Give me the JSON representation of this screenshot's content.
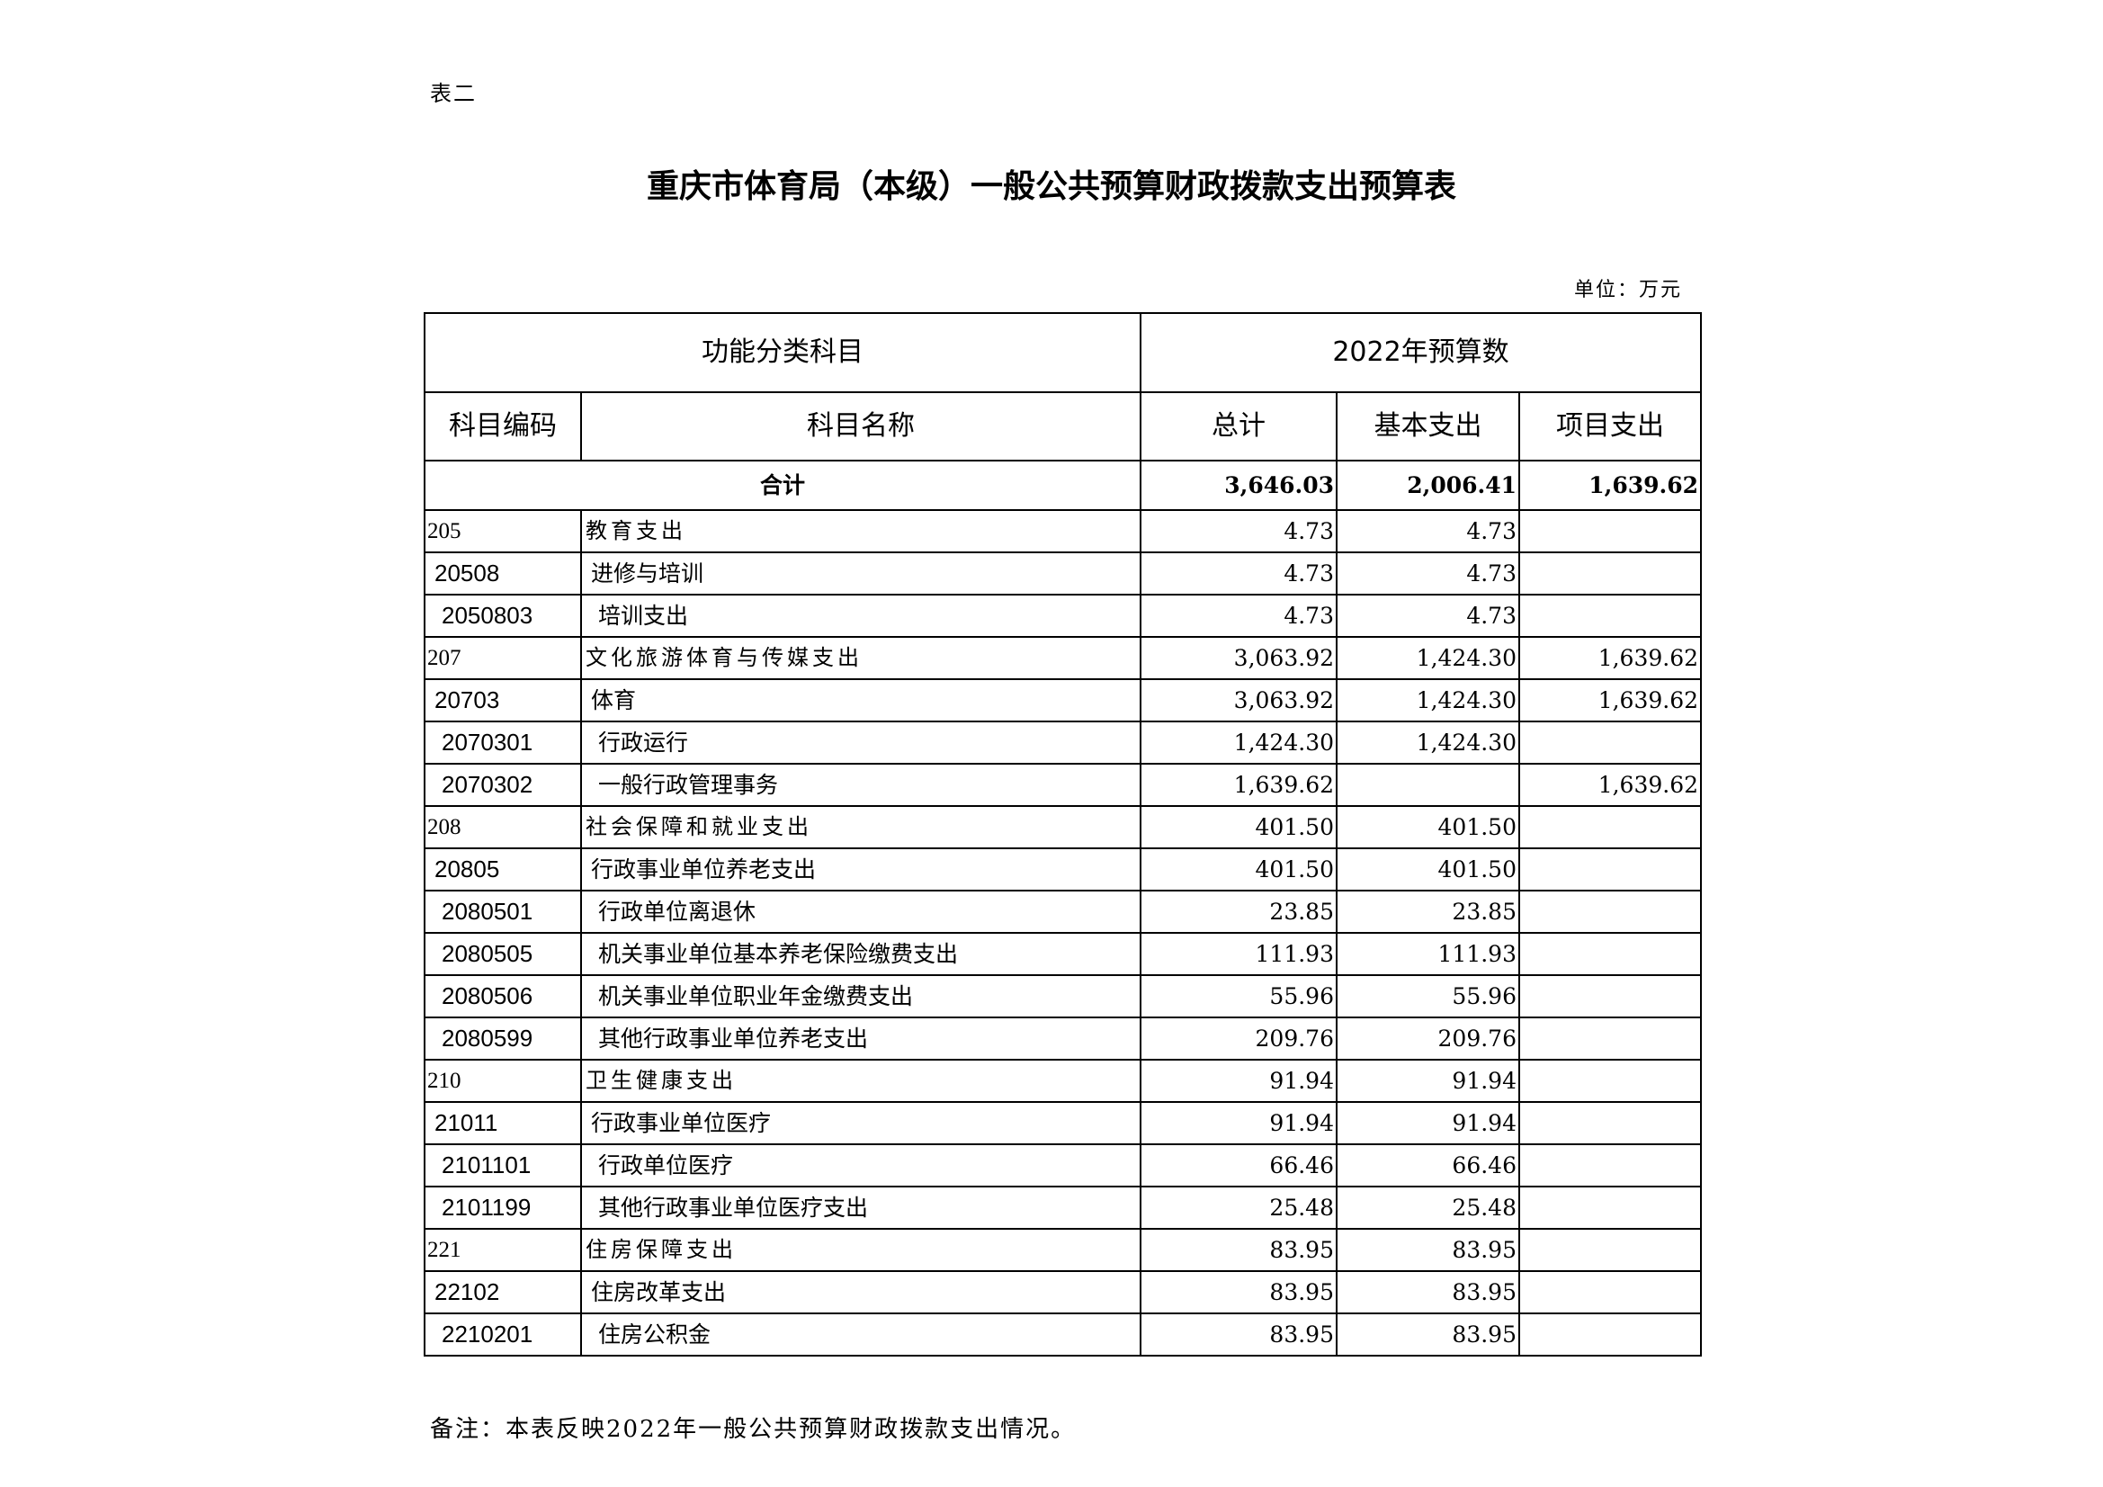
{
  "tag": "表二",
  "title": "重庆市体育局（本级）一般公共预算财政拨款支出预算表",
  "unit": "单位：万元",
  "header": {
    "group_left": "功能分类科目",
    "group_right": "2022年预算数",
    "code": "科目编码",
    "name": "科目名称",
    "total": "总计",
    "basic": "基本支出",
    "project": "项目支出"
  },
  "total_row": {
    "label": "合计",
    "total": "3,646.03",
    "basic": "2,006.41",
    "project": "1,639.62"
  },
  "rows": [
    {
      "level": 1,
      "code": "205",
      "name": "教育支出",
      "total": "4.73",
      "basic": "4.73",
      "project": ""
    },
    {
      "level": 2,
      "code": "20508",
      "name": "进修与培训",
      "total": "4.73",
      "basic": "4.73",
      "project": ""
    },
    {
      "level": 3,
      "code": "2050803",
      "name": "培训支出",
      "total": "4.73",
      "basic": "4.73",
      "project": ""
    },
    {
      "level": 1,
      "code": "207",
      "name": "文化旅游体育与传媒支出",
      "total": "3,063.92",
      "basic": "1,424.30",
      "project": "1,639.62"
    },
    {
      "level": 2,
      "code": "20703",
      "name": "体育",
      "total": "3,063.92",
      "basic": "1,424.30",
      "project": "1,639.62"
    },
    {
      "level": 3,
      "code": "2070301",
      "name": "行政运行",
      "total": "1,424.30",
      "basic": "1,424.30",
      "project": ""
    },
    {
      "level": 3,
      "code": "2070302",
      "name": "一般行政管理事务",
      "total": "1,639.62",
      "basic": "",
      "project": "1,639.62"
    },
    {
      "level": 1,
      "code": "208",
      "name": "社会保障和就业支出",
      "total": "401.50",
      "basic": "401.50",
      "project": ""
    },
    {
      "level": 2,
      "code": "20805",
      "name": "行政事业单位养老支出",
      "total": "401.50",
      "basic": "401.50",
      "project": ""
    },
    {
      "level": 3,
      "code": "2080501",
      "name": "行政单位离退休",
      "total": "23.85",
      "basic": "23.85",
      "project": ""
    },
    {
      "level": 3,
      "code": "2080505",
      "name": "机关事业单位基本养老保险缴费支出",
      "total": "111.93",
      "basic": "111.93",
      "project": ""
    },
    {
      "level": 3,
      "code": "2080506",
      "name": "机关事业单位职业年金缴费支出",
      "total": "55.96",
      "basic": "55.96",
      "project": ""
    },
    {
      "level": 3,
      "code": "2080599",
      "name": "其他行政事业单位养老支出",
      "total": "209.76",
      "basic": "209.76",
      "project": ""
    },
    {
      "level": 1,
      "code": "210",
      "name": "卫生健康支出",
      "total": "91.94",
      "basic": "91.94",
      "project": ""
    },
    {
      "level": 2,
      "code": "21011",
      "name": "行政事业单位医疗",
      "total": "91.94",
      "basic": "91.94",
      "project": ""
    },
    {
      "level": 3,
      "code": "2101101",
      "name": "行政单位医疗",
      "total": "66.46",
      "basic": "66.46",
      "project": ""
    },
    {
      "level": 3,
      "code": "2101199",
      "name": "其他行政事业单位医疗支出",
      "total": "25.48",
      "basic": "25.48",
      "project": ""
    },
    {
      "level": 1,
      "code": "221",
      "name": "住房保障支出",
      "total": "83.95",
      "basic": "83.95",
      "project": ""
    },
    {
      "level": 2,
      "code": "22102",
      "name": "住房改革支出",
      "total": "83.95",
      "basic": "83.95",
      "project": ""
    },
    {
      "level": 3,
      "code": "2210201",
      "name": "住房公积金",
      "total": "83.95",
      "basic": "83.95",
      "project": ""
    }
  ],
  "note": "备注：本表反映2022年一般公共预算财政拨款支出情况。"
}
